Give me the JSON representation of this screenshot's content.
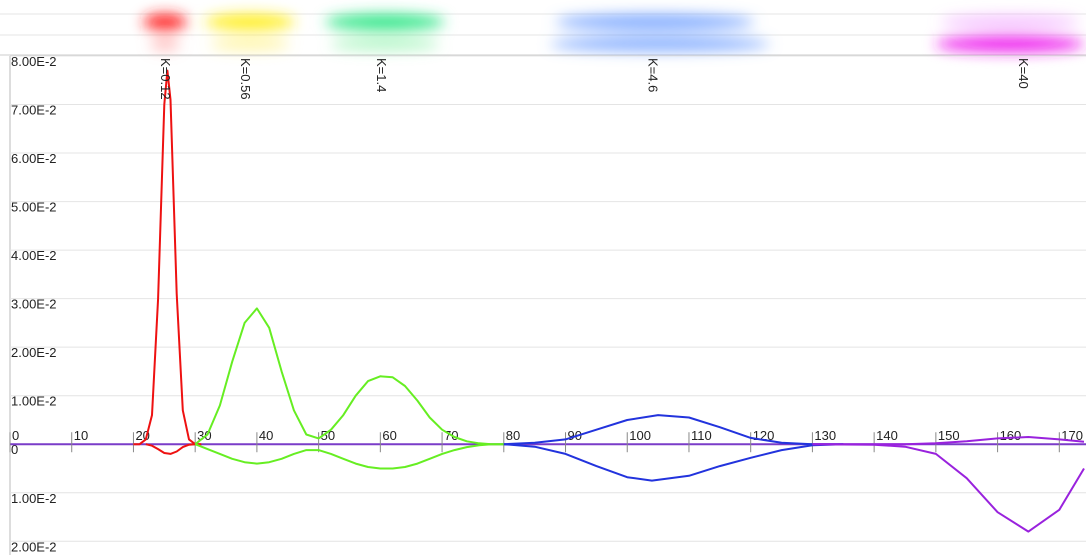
{
  "chart_data": {
    "type": "line",
    "xlim": [
      0,
      174
    ],
    "ylim": [
      -0.022,
      0.08
    ],
    "xticks": [
      0,
      10,
      20,
      30,
      40,
      50,
      60,
      70,
      80,
      90,
      100,
      110,
      120,
      130,
      140,
      150,
      160,
      170
    ],
    "yticks": [
      {
        "value": 0.08,
        "label": "8.00E-2"
      },
      {
        "value": 0.07,
        "label": "7.00E-2"
      },
      {
        "value": 0.06,
        "label": "6.00E-2"
      },
      {
        "value": 0.05,
        "label": "5.00E-2"
      },
      {
        "value": 0.04,
        "label": "4.00E-2"
      },
      {
        "value": 0.03,
        "label": "3.00E-2"
      },
      {
        "value": 0.02,
        "label": "2.00E-2"
      },
      {
        "value": 0.01,
        "label": "1.00E-2"
      },
      0,
      {
        "value": -0.01,
        "label": "1.00E-2"
      },
      {
        "value": -0.02,
        "label": "2.00E-2"
      }
    ],
    "grid": true,
    "annotations": [
      {
        "text": "K=0.12",
        "x": 25
      },
      {
        "text": "K=0.56",
        "x": 38
      },
      {
        "text": "K=1.4",
        "x": 60
      },
      {
        "text": "K=4.6",
        "x": 104
      },
      {
        "text": "K=40",
        "x": 164
      }
    ],
    "series": [
      {
        "color": "#ee1111",
        "x": [
          20,
          21,
          22,
          23,
          24,
          25,
          25.5,
          26,
          27,
          28,
          29,
          30,
          31
        ],
        "values": [
          0,
          0,
          0.001,
          0.006,
          0.03,
          0.07,
          0.077,
          0.071,
          0.031,
          0.007,
          0.001,
          0,
          0
        ]
      },
      {
        "color": "#ee1111",
        "x": [
          22,
          23,
          24,
          25,
          26,
          27,
          28,
          29,
          30
        ],
        "values": [
          0,
          -0.0003,
          -0.001,
          -0.0018,
          -0.002,
          -0.0015,
          -0.0006,
          -0.0001,
          0
        ]
      },
      {
        "color": "#66ee22",
        "x": [
          30,
          32,
          34,
          36,
          38,
          40,
          42,
          44,
          46,
          48,
          50,
          52,
          54,
          56,
          58,
          60,
          62,
          64,
          66,
          68,
          70,
          72,
          74,
          76,
          78,
          80
        ],
        "values": [
          0,
          0.002,
          0.008,
          0.017,
          0.025,
          0.028,
          0.024,
          0.015,
          0.007,
          0.002,
          0.0012,
          0.003,
          0.006,
          0.01,
          0.013,
          0.014,
          0.0138,
          0.012,
          0.009,
          0.0055,
          0.003,
          0.0015,
          0.0006,
          0.0002,
          0,
          0
        ]
      },
      {
        "color": "#66ee22",
        "x": [
          30,
          32,
          34,
          36,
          38,
          40,
          42,
          44,
          46,
          48,
          50,
          52,
          54,
          56,
          58,
          60,
          62,
          64,
          66,
          68,
          70,
          72,
          74,
          76,
          78,
          80
        ],
        "values": [
          0,
          -0.001,
          -0.002,
          -0.003,
          -0.0037,
          -0.004,
          -0.0037,
          -0.003,
          -0.002,
          -0.0012,
          -0.0012,
          -0.002,
          -0.003,
          -0.004,
          -0.0047,
          -0.005,
          -0.005,
          -0.0047,
          -0.004,
          -0.003,
          -0.002,
          -0.0012,
          -0.0006,
          -0.0002,
          0,
          0
        ]
      },
      {
        "color": "#2233dd",
        "x": [
          80,
          85,
          90,
          95,
          100,
          105,
          110,
          115,
          120,
          125,
          130,
          135
        ],
        "values": [
          0,
          0.0003,
          0.001,
          0.003,
          0.005,
          0.006,
          0.0055,
          0.0035,
          0.0013,
          0.0003,
          0,
          0
        ]
      },
      {
        "color": "#2233dd",
        "x": [
          80,
          85,
          90,
          95,
          100,
          104,
          110,
          115,
          120,
          125,
          130,
          135
        ],
        "values": [
          0,
          -0.0005,
          -0.002,
          -0.0045,
          -0.0068,
          -0.0075,
          -0.0065,
          -0.0045,
          -0.0028,
          -0.0012,
          -0.0002,
          0
        ]
      },
      {
        "color": "#9922dd",
        "x": [
          130,
          140,
          145,
          150,
          155,
          160,
          165,
          170,
          174
        ],
        "values": [
          0,
          0,
          0,
          0.0002,
          0.0006,
          0.0012,
          0.0015,
          0.001,
          0.0005
        ]
      },
      {
        "color": "#9922dd",
        "x": [
          130,
          140,
          145,
          150,
          155,
          160,
          165,
          170,
          174
        ],
        "values": [
          0,
          -0.0001,
          -0.0005,
          -0.002,
          -0.007,
          -0.014,
          -0.018,
          -0.0135,
          -0.005
        ]
      }
    ]
  }
}
